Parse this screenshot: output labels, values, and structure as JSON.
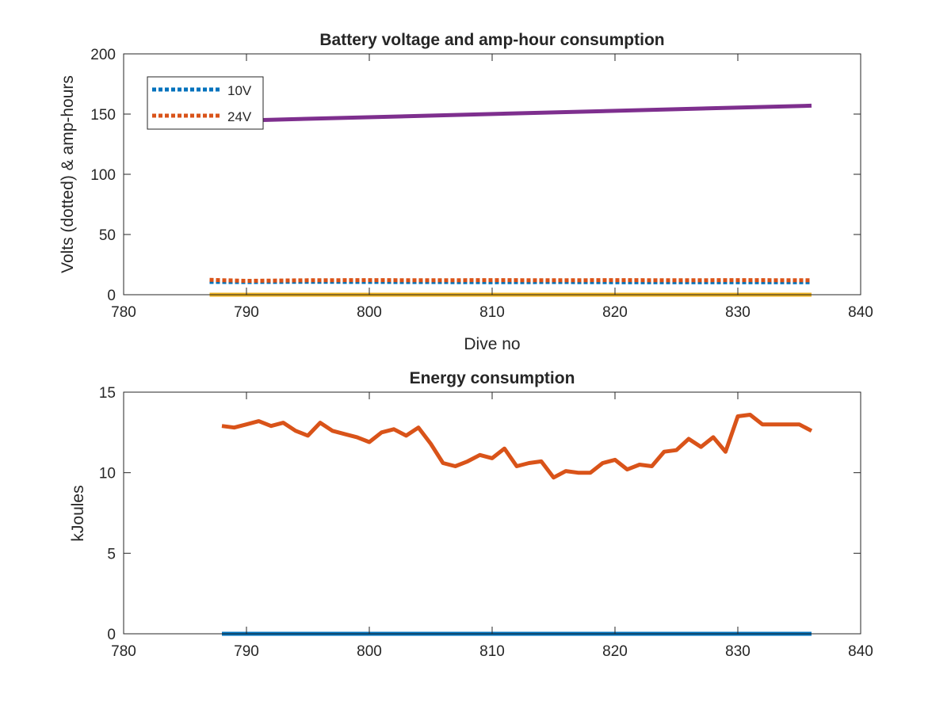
{
  "colors": {
    "blue": "#0072BD",
    "orange": "#D95319",
    "yellow": "#EDB120",
    "purple": "#7E2F8E",
    "axis": "#262626"
  },
  "chart_data": [
    {
      "type": "line",
      "title": "Battery voltage and amp-hour consumption",
      "xlabel": "Dive no",
      "ylabel": "Volts (dotted) & amp-hours",
      "xlim": [
        780,
        840
      ],
      "ylim": [
        0,
        200
      ],
      "xticks": [
        780,
        790,
        800,
        810,
        820,
        830,
        840
      ],
      "yticks": [
        0,
        50,
        100,
        150,
        200
      ],
      "grid": false,
      "legend_position": "top-left",
      "series": [
        {
          "name": "10V",
          "style": "dotted",
          "color": "blue",
          "in_legend": true,
          "x": [
            787,
            790,
            795,
            800,
            805,
            810,
            815,
            820,
            825,
            830,
            836
          ],
          "y": [
            10.6,
            10.5,
            10.7,
            10.6,
            10.5,
            10.4,
            10.5,
            10.4,
            10.4,
            10.3,
            10.4
          ]
        },
        {
          "name": "24V",
          "style": "dotted",
          "color": "orange",
          "in_legend": true,
          "x": [
            787,
            790,
            795,
            800,
            805,
            810,
            815,
            820,
            825,
            830,
            836
          ],
          "y": [
            12.3,
            11.5,
            12.0,
            12.1,
            12.0,
            12.1,
            12.0,
            12.1,
            12.0,
            12.1,
            12.0
          ]
        },
        {
          "style": "solid",
          "color": "yellow",
          "in_legend": false,
          "x": [
            787,
            836
          ],
          "y": [
            0,
            0
          ]
        },
        {
          "style": "solid",
          "color": "purple",
          "in_legend": false,
          "x": [
            791,
            836
          ],
          "y": [
            145,
            157
          ]
        }
      ]
    },
    {
      "type": "line",
      "title": "Energy consumption",
      "xlabel": "",
      "ylabel": "kJoules",
      "xlim": [
        780,
        840
      ],
      "ylim": [
        0,
        15
      ],
      "xticks": [
        780,
        790,
        800,
        810,
        820,
        830,
        840
      ],
      "yticks": [
        0,
        5,
        10,
        15
      ],
      "grid": false,
      "series": [
        {
          "style": "solid",
          "color": "blue",
          "x": [
            788,
            836
          ],
          "y": [
            0,
            0
          ]
        },
        {
          "style": "solid",
          "color": "orange",
          "x": [
            788,
            789,
            790,
            791,
            792,
            793,
            794,
            795,
            796,
            797,
            798,
            799,
            800,
            801,
            802,
            803,
            804,
            805,
            806,
            807,
            808,
            809,
            810,
            811,
            812,
            813,
            814,
            815,
            816,
            817,
            818,
            819,
            820,
            821,
            822,
            823,
            824,
            825,
            826,
            827,
            828,
            829,
            830,
            831,
            832,
            833,
            834,
            835,
            836
          ],
          "y": [
            12.9,
            12.8,
            13.0,
            13.2,
            12.9,
            13.1,
            12.6,
            12.3,
            13.1,
            12.6,
            12.4,
            12.2,
            11.9,
            12.5,
            12.7,
            12.3,
            12.8,
            11.8,
            10.6,
            10.4,
            10.7,
            11.1,
            10.9,
            11.5,
            10.4,
            10.6,
            10.7,
            9.7,
            10.1,
            10.0,
            10.0,
            10.6,
            10.8,
            10.2,
            10.5,
            10.4,
            11.3,
            11.4,
            12.1,
            11.6,
            12.2,
            11.3,
            13.5,
            13.6,
            13.0,
            13.0,
            13.0,
            13.0,
            12.6
          ]
        }
      ]
    }
  ]
}
